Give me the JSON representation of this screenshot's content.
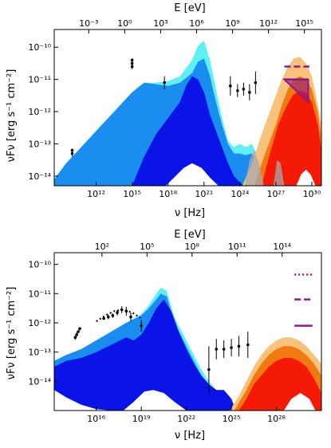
{
  "colors": {
    "light_cyan": "#5ff0f5",
    "light_blue": "#1a8ef0",
    "dark_blue": "#0a14e6",
    "orange_light": "#f8c27a",
    "orange": "#f07a10",
    "red": "#f51a05",
    "gray_band": "#a8a8b0",
    "purple": "#8b1a8b",
    "axis": "#000000"
  },
  "chart_data": [
    {
      "type": "area",
      "scale": "log-log",
      "xlabel": "ν [Hz]",
      "top_xlabel": "E [eV]",
      "ylabel": "νFν [erg s⁻¹ cm⁻²]",
      "xlim_log10": [
        8.5,
        30.8
      ],
      "ylim_log10": [
        -14.3,
        -9.45
      ],
      "x_tick_labels": [
        {
          "log10": 12,
          "text": "10¹²"
        },
        {
          "log10": 15,
          "text": "10¹⁵"
        },
        {
          "log10": 18,
          "text": "10¹⁸"
        },
        {
          "log10": 21,
          "text": "10²¹"
        },
        {
          "log10": 24,
          "text": "10²⁴"
        },
        {
          "log10": 27,
          "text": "10²⁷"
        },
        {
          "log10": 30,
          "text": "10³⁰"
        }
      ],
      "top_tick_labels": [
        {
          "log10": -3,
          "text": "10⁻³"
        },
        {
          "log10": 0,
          "text": "10⁰"
        },
        {
          "log10": 3,
          "text": "10³"
        },
        {
          "log10": 6,
          "text": "10⁶"
        },
        {
          "log10": 9,
          "text": "10⁹"
        },
        {
          "log10": 12,
          "text": "10¹²"
        },
        {
          "log10": 15,
          "text": "10¹⁵"
        }
      ],
      "y_tick_labels": [
        {
          "log10": -10,
          "text": "10⁻¹⁰"
        },
        {
          "log10": -11,
          "text": "10⁻¹¹"
        },
        {
          "log10": -12,
          "text": "10⁻¹²"
        },
        {
          "log10": -13,
          "text": "10⁻¹³"
        },
        {
          "log10": -14,
          "text": "10⁻¹⁴"
        }
      ],
      "bands": [
        {
          "role": "synchrotron-upper",
          "color": "light_cyan",
          "x": [
            8.5,
            9.5,
            11,
            12,
            13,
            14,
            15,
            16,
            17,
            18,
            19,
            20,
            20.5,
            21,
            21.5,
            22,
            22.5,
            23,
            23.5,
            24,
            24.5,
            25,
            25.5,
            25.8
          ],
          "y": [
            -14.1,
            -13.6,
            -13.0,
            -12.6,
            -12.2,
            -11.8,
            -11.4,
            -11.1,
            -11.1,
            -11.05,
            -10.9,
            -10.4,
            -9.95,
            -9.8,
            -10.4,
            -11.3,
            -12.2,
            -12.9,
            -13.1,
            -13.0,
            -13.1,
            -13.0,
            -13.4,
            -14.3
          ]
        },
        {
          "role": "synchrotron-lower",
          "color": "light_blue",
          "x": [
            8.5,
            9.5,
            11,
            12,
            13,
            14,
            15,
            16,
            17,
            18,
            19,
            20,
            20.5,
            21,
            21.5,
            22,
            22.5,
            23,
            23.5,
            24,
            24.5,
            25,
            25.5,
            25.8
          ],
          "y": [
            -14.1,
            -13.6,
            -13.0,
            -12.6,
            -12.2,
            -11.8,
            -11.4,
            -11.1,
            -11.15,
            -11.2,
            -11.1,
            -10.8,
            -10.45,
            -10.35,
            -10.9,
            -11.7,
            -12.4,
            -13.0,
            -13.3,
            -13.3,
            -13.35,
            -13.3,
            -13.6,
            -14.3
          ]
        },
        {
          "role": "dark-component",
          "color": "dark_blue",
          "x": [
            8.5,
            11,
            13,
            15,
            16,
            17,
            18,
            19,
            19.5,
            20,
            20.5,
            21,
            21.5,
            22,
            22.5,
            23,
            23.5,
            24,
            24.3
          ],
          "y": [
            -14.3,
            -14.3,
            -14.3,
            -14.3,
            -13.4,
            -12.7,
            -12.2,
            -11.7,
            -11.2,
            -10.9,
            -11.0,
            -11.4,
            -12.1,
            -12.6,
            -13.1,
            -13.6,
            -14.0,
            -14.2,
            -14.3
          ]
        },
        {
          "role": "vhe-upper",
          "color": "orange_light",
          "x": [
            24.2,
            25,
            26,
            27,
            27.5,
            28,
            28.5,
            29,
            29.5,
            30,
            30.4,
            30.8
          ],
          "y": [
            -14.3,
            -13.6,
            -12.5,
            -11.5,
            -11.0,
            -10.6,
            -10.35,
            -10.3,
            -10.5,
            -10.9,
            -11.6,
            -12.4
          ]
        },
        {
          "role": "vhe-middle",
          "color": "orange",
          "x": [
            25.2,
            26,
            27,
            27.5,
            28,
            28.5,
            29,
            29.5,
            30,
            30.5,
            30.8
          ],
          "y": [
            -14.3,
            -13.4,
            -12.4,
            -11.8,
            -11.3,
            -11.0,
            -10.9,
            -11.0,
            -11.3,
            -12.0,
            -12.8
          ]
        },
        {
          "role": "vhe-lower",
          "color": "red",
          "x": [
            25.8,
            26.5,
            27.2,
            27.8,
            28.4,
            29,
            29.5,
            30,
            30.5,
            30.8
          ],
          "y": [
            -14.3,
            -13.3,
            -12.4,
            -11.9,
            -11.5,
            -11.35,
            -11.4,
            -11.7,
            -12.4,
            -13.2
          ]
        },
        {
          "role": "gray-left",
          "color": "gray_band",
          "x": [
            24.4,
            24.8,
            25.2,
            25.6,
            26.0
          ],
          "y": [
            -14.3,
            -13.5,
            -13.2,
            -13.6,
            -14.3
          ]
        },
        {
          "role": "gray-right",
          "color": "gray_band",
          "x": [
            26.8,
            27.1,
            27.4,
            27.7
          ],
          "y": [
            -14.3,
            -13.5,
            -13.6,
            -14.3
          ]
        }
      ],
      "white_humps": [
        {
          "x": [
            17.8,
            18.5,
            19.3,
            20.0,
            20.8,
            21.5,
            22.2
          ],
          "y": [
            -14.3,
            -14.05,
            -13.75,
            -13.6,
            -13.75,
            -14.05,
            -14.3
          ]
        },
        {
          "x": [
            28.7,
            29.1,
            29.5,
            29.9,
            30.3
          ],
          "y": [
            -14.3,
            -13.95,
            -13.8,
            -13.95,
            -14.3
          ]
        }
      ],
      "data_points": [
        {
          "x": 10.0,
          "y": -13.3,
          "yerr": 0.1
        },
        {
          "x": 10.0,
          "y": -13.2,
          "yerr": 0.05
        },
        {
          "x": 15.0,
          "y": -10.6,
          "yerr": 0.08
        },
        {
          "x": 15.0,
          "y": -10.5,
          "yerr": 0.05
        },
        {
          "x": 15.0,
          "y": -10.4,
          "yerr": 0.05
        },
        {
          "x": 17.7,
          "y": -11.1,
          "yerr": 0.2
        },
        {
          "x": 23.2,
          "y": -11.2,
          "yerr": 0.3
        },
        {
          "x": 23.8,
          "y": -11.35,
          "yerr": 0.2
        },
        {
          "x": 24.3,
          "y": -11.3,
          "yerr": 0.2
        },
        {
          "x": 24.8,
          "y": -11.4,
          "yerr": 0.25
        },
        {
          "x": 25.3,
          "y": -11.1,
          "yerr": 0.35
        }
      ],
      "purple_limits": [
        {
          "x": [
            27.7,
            29.8
          ],
          "y": -10.6,
          "style": "dashed"
        },
        {
          "x": [
            27.7,
            29.7
          ],
          "y": -11.0,
          "style": "solid-triangle"
        }
      ]
    },
    {
      "type": "area",
      "scale": "log-log",
      "xlabel": "ν [Hz]",
      "top_xlabel": "E [eV]",
      "ylabel": "νFν [erg s⁻¹ cm⁻²]",
      "xlim_log10": [
        13.2,
        31.0
      ],
      "ylim_log10": [
        -15.0,
        -9.6
      ],
      "x_tick_labels": [
        {
          "log10": 16,
          "text": "10¹⁶"
        },
        {
          "log10": 19,
          "text": "10¹⁹"
        },
        {
          "log10": 22,
          "text": "10²²"
        },
        {
          "log10": 25,
          "text": "10²⁵"
        },
        {
          "log10": 28,
          "text": "10²⁸"
        }
      ],
      "top_tick_labels": [
        {
          "log10": 2,
          "text": "10²"
        },
        {
          "log10": 5,
          "text": "10⁵"
        },
        {
          "log10": 8,
          "text": "10⁸"
        },
        {
          "log10": 11,
          "text": "10¹¹"
        },
        {
          "log10": 14,
          "text": "10¹⁴"
        }
      ],
      "y_tick_labels": [
        {
          "log10": -10,
          "text": "10⁻¹⁰"
        },
        {
          "log10": -11,
          "text": "10⁻¹¹"
        },
        {
          "log10": -12,
          "text": "10⁻¹²"
        },
        {
          "log10": -13,
          "text": "10⁻¹³"
        },
        {
          "log10": -14,
          "text": "10⁻¹⁴"
        }
      ],
      "bands": [
        {
          "role": "synchrotron-upper",
          "color": "light_cyan",
          "x": [
            13.2,
            14,
            15,
            16,
            17,
            18,
            19,
            19.5,
            20,
            20.3,
            20.7,
            21.2,
            22,
            22.5,
            23,
            23.5,
            24,
            24.5,
            25,
            25.3
          ],
          "y": [
            -13.3,
            -13.1,
            -12.9,
            -12.6,
            -12.3,
            -12.0,
            -11.7,
            -11.4,
            -11.0,
            -10.8,
            -10.9,
            -11.8,
            -12.6,
            -13.1,
            -13.6,
            -14.0,
            -14.3,
            -14.4,
            -14.7,
            -15.0
          ]
        },
        {
          "role": "synchrotron-lower",
          "color": "light_blue",
          "x": [
            13.2,
            14,
            15,
            16,
            17,
            18,
            19,
            19.5,
            20,
            20.3,
            20.7,
            21.2,
            22,
            22.5,
            23,
            23.5,
            24,
            24.5,
            25,
            25.3
          ],
          "y": [
            -13.3,
            -13.1,
            -12.9,
            -12.6,
            -12.3,
            -12.0,
            -11.75,
            -11.5,
            -11.2,
            -11.0,
            -11.1,
            -12.0,
            -12.8,
            -13.3,
            -13.8,
            -14.2,
            -14.4,
            -14.5,
            -14.8,
            -15.0
          ]
        },
        {
          "role": "dark-component",
          "color": "dark_blue",
          "x": [
            13.2,
            14,
            15,
            16,
            17,
            18,
            18.5,
            19,
            19.5,
            20,
            20.5,
            21,
            21.5,
            22,
            22.5,
            23,
            23.5,
            24,
            24.5,
            25,
            25.3
          ],
          "y": [
            -13.5,
            -13.3,
            -13.2,
            -13.0,
            -12.75,
            -12.5,
            -12.6,
            -12.4,
            -12.0,
            -11.5,
            -11.2,
            -11.6,
            -12.3,
            -12.9,
            -13.4,
            -13.8,
            -14.1,
            -14.3,
            -14.3,
            -14.6,
            -15.0
          ]
        },
        {
          "role": "vhe-upper",
          "color": "orange_light",
          "x": [
            24.9,
            25.5,
            26,
            26.5,
            27,
            27.5,
            28,
            28.5,
            29,
            29.5,
            30,
            30.5,
            31.0
          ],
          "y": [
            -15.0,
            -14.5,
            -14.0,
            -13.5,
            -13.1,
            -12.8,
            -12.6,
            -12.5,
            -12.5,
            -12.6,
            -12.8,
            -13.1,
            -13.4
          ]
        },
        {
          "role": "vhe-middle",
          "color": "orange",
          "x": [
            25.2,
            26,
            26.5,
            27,
            27.5,
            28,
            28.5,
            29,
            29.5,
            30,
            30.5,
            31.0
          ],
          "y": [
            -15.0,
            -14.3,
            -13.8,
            -13.4,
            -13.1,
            -12.9,
            -12.8,
            -12.8,
            -12.9,
            -13.1,
            -13.4,
            -13.8
          ]
        },
        {
          "role": "vhe-lower",
          "color": "red",
          "x": [
            25.5,
            26,
            26.5,
            27,
            27.5,
            28,
            28.5,
            29,
            29.5,
            30,
            30.5,
            31.0
          ],
          "y": [
            -15.0,
            -14.6,
            -14.1,
            -13.8,
            -13.5,
            -13.3,
            -13.2,
            -13.2,
            -13.3,
            -13.5,
            -13.9,
            -14.4
          ]
        }
      ],
      "white_humps": [
        {
          "x": [
            13.2,
            14.0,
            15.0,
            16.0,
            17.0,
            17.8
          ],
          "y": [
            -14.3,
            -14.55,
            -14.8,
            -14.95,
            -15.0,
            -15.0
          ]
        },
        {
          "x": [
            17.8,
            18.5,
            19.2,
            19.8,
            20.5,
            21.2,
            22.0
          ],
          "y": [
            -15.0,
            -14.7,
            -14.35,
            -14.3,
            -14.4,
            -14.7,
            -15.0
          ]
        },
        {
          "x": [
            28.5,
            29.0,
            29.6,
            30.2,
            30.6
          ],
          "y": [
            -15.0,
            -14.6,
            -14.4,
            -14.6,
            -15.0
          ]
        }
      ],
      "data_points": [
        {
          "x": 14.6,
          "y": -12.5,
          "yerr": 0.08
        },
        {
          "x": 14.7,
          "y": -12.4,
          "yerr": 0.08
        },
        {
          "x": 14.8,
          "y": -12.3,
          "yerr": 0.05
        },
        {
          "x": 14.9,
          "y": -12.2,
          "yerr": 0.05
        },
        {
          "x": 16.5,
          "y": -11.85,
          "yerr": 0.05
        },
        {
          "x": 16.8,
          "y": -11.8,
          "yerr": 0.08
        },
        {
          "x": 17.1,
          "y": -11.75,
          "yerr": 0.08
        },
        {
          "x": 17.4,
          "y": -11.65,
          "yerr": 0.1
        },
        {
          "x": 17.7,
          "y": -11.55,
          "yerr": 0.12
        },
        {
          "x": 18.0,
          "y": -11.6,
          "yerr": 0.15
        },
        {
          "x": 18.3,
          "y": -11.8,
          "yerr": 0.15
        },
        {
          "x": 19.0,
          "y": -12.1,
          "yerr": 0.2
        },
        {
          "x": 23.5,
          "y": -13.6,
          "yerr": 0.8
        },
        {
          "x": 24.0,
          "y": -12.9,
          "yerr": 0.35
        },
        {
          "x": 24.5,
          "y": -12.9,
          "yerr": 0.3
        },
        {
          "x": 25.0,
          "y": -12.85,
          "yerr": 0.3
        },
        {
          "x": 25.5,
          "y": -12.8,
          "yerr": 0.35
        },
        {
          "x": 26.1,
          "y": -12.75,
          "yerr": 0.45
        }
      ],
      "dotted_fit": {
        "x": [
          16.0,
          16.6,
          17.2,
          17.8,
          18.4,
          19.0
        ],
        "y": [
          -11.95,
          -11.75,
          -11.6,
          -11.55,
          -11.65,
          -11.85
        ]
      },
      "purple_limits": [
        {
          "x": [
            29.2,
            30.4
          ],
          "y": -10.35,
          "style": "dotted"
        },
        {
          "x": [
            29.2,
            30.4
          ],
          "y": -11.2,
          "style": "dashed"
        },
        {
          "x": [
            29.2,
            30.4
          ],
          "y": -12.1,
          "style": "solid"
        }
      ]
    }
  ]
}
